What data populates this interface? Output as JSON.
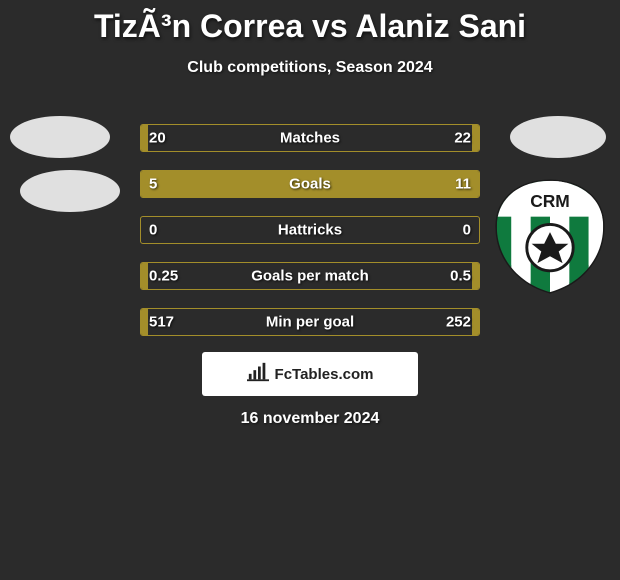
{
  "accent_color": "#a38e2a",
  "background_color": "#2b2b2b",
  "title": "TizÃ³n Correa vs Alaniz Sani",
  "subtitle": "Club competitions, Season 2024",
  "crest_label": "CRM",
  "crest_stripe_color": "#0f7a3e",
  "crest_bg_color": "#ffffff",
  "stats": [
    {
      "label": "Matches",
      "left_value": "20",
      "right_value": "22",
      "left_pct": 2,
      "right_pct": 2
    },
    {
      "label": "Goals",
      "left_value": "5",
      "right_value": "11",
      "left_pct": 28,
      "right_pct": 72
    },
    {
      "label": "Hattricks",
      "left_value": "0",
      "right_value": "0",
      "left_pct": 0,
      "right_pct": 0
    },
    {
      "label": "Goals per match",
      "left_value": "0.25",
      "right_value": "0.5",
      "left_pct": 2,
      "right_pct": 2
    },
    {
      "label": "Min per goal",
      "left_value": "517",
      "right_value": "252",
      "left_pct": 2,
      "right_pct": 2
    }
  ],
  "branding": "FcTables.com",
  "date": "16 november 2024"
}
